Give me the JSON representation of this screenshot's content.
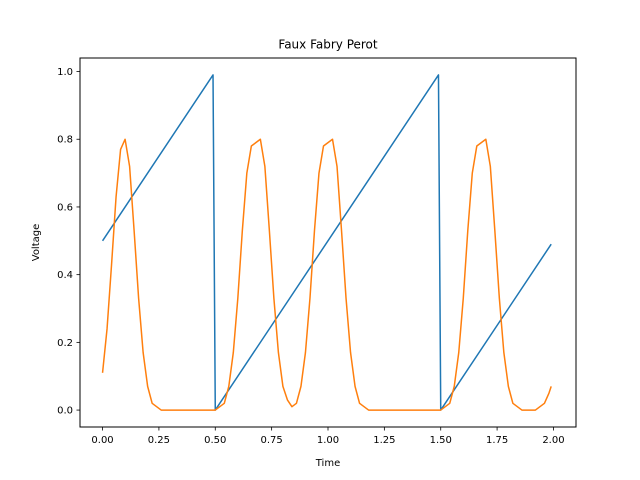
{
  "chart_data": {
    "type": "line",
    "title": "Faux Fabry Perot",
    "xlabel": "Time",
    "ylabel": "Voltage",
    "xlim": [
      -0.1,
      2.1
    ],
    "ylim": [
      -0.05,
      1.04
    ],
    "x_ticks": [
      0.0,
      0.25,
      0.5,
      0.75,
      1.0,
      1.25,
      1.5,
      1.75,
      2.0
    ],
    "x_tick_labels": [
      "0.00",
      "0.25",
      "0.50",
      "0.75",
      "1.00",
      "1.25",
      "1.50",
      "1.75",
      "2.00"
    ],
    "y_ticks": [
      0.0,
      0.2,
      0.4,
      0.6,
      0.8,
      1.0
    ],
    "y_tick_labels": [
      "0.0",
      "0.2",
      "0.4",
      "0.6",
      "0.8",
      "1.0"
    ],
    "grid": false,
    "legend": "none",
    "series": [
      {
        "color": "#1f77b4",
        "x": [
          0.0,
          0.49,
          0.49,
          0.5,
          1.49,
          1.49,
          1.5,
          1.99
        ],
        "y": [
          0.5,
          0.99,
          0.99,
          0.0,
          0.99,
          0.99,
          0.0,
          0.49
        ]
      },
      {
        "color": "#ff7f0e",
        "x": [
          0.0,
          0.02,
          0.04,
          0.06,
          0.08,
          0.1,
          0.12,
          0.14,
          0.16,
          0.18,
          0.2,
          0.22,
          0.24,
          0.26,
          0.3,
          0.4,
          0.5,
          0.52,
          0.54,
          0.56,
          0.58,
          0.6,
          0.62,
          0.64,
          0.66,
          0.68,
          0.7,
          0.72,
          0.74,
          0.76,
          0.78,
          0.8,
          0.82,
          0.84,
          0.86,
          0.88,
          0.9,
          0.92,
          0.94,
          0.96,
          0.98,
          1.0,
          1.02,
          1.04,
          1.06,
          1.08,
          1.1,
          1.12,
          1.14,
          1.16,
          1.18,
          1.2,
          1.22,
          1.24,
          1.26,
          1.3,
          1.4,
          1.5,
          1.52,
          1.54,
          1.56,
          1.58,
          1.6,
          1.62,
          1.64,
          1.66,
          1.68,
          1.7,
          1.72,
          1.74,
          1.76,
          1.78,
          1.8,
          1.82,
          1.84,
          1.86,
          1.88,
          1.9,
          1.92,
          1.94,
          1.96,
          1.98,
          1.99
        ],
        "y": [
          0.11,
          0.24,
          0.43,
          0.63,
          0.77,
          0.8,
          0.72,
          0.53,
          0.33,
          0.17,
          0.07,
          0.02,
          0.01,
          0.0,
          0.0,
          0.0,
          0.0,
          0.01,
          0.02,
          0.07,
          0.17,
          0.33,
          0.53,
          0.7,
          0.78,
          0.79,
          0.8,
          0.72,
          0.53,
          0.33,
          0.17,
          0.07,
          0.03,
          0.01,
          0.02,
          0.07,
          0.17,
          0.33,
          0.53,
          0.7,
          0.78,
          0.79,
          0.8,
          0.72,
          0.53,
          0.33,
          0.17,
          0.07,
          0.02,
          0.01,
          0.0,
          0.0,
          0.0,
          0.0,
          0.0,
          0.0,
          0.0,
          0.0,
          0.01,
          0.02,
          0.07,
          0.17,
          0.33,
          0.53,
          0.7,
          0.78,
          0.79,
          0.8,
          0.72,
          0.53,
          0.33,
          0.17,
          0.07,
          0.02,
          0.01,
          0.0,
          0.0,
          0.0,
          0.0,
          0.01,
          0.02,
          0.05,
          0.07
        ]
      }
    ]
  }
}
